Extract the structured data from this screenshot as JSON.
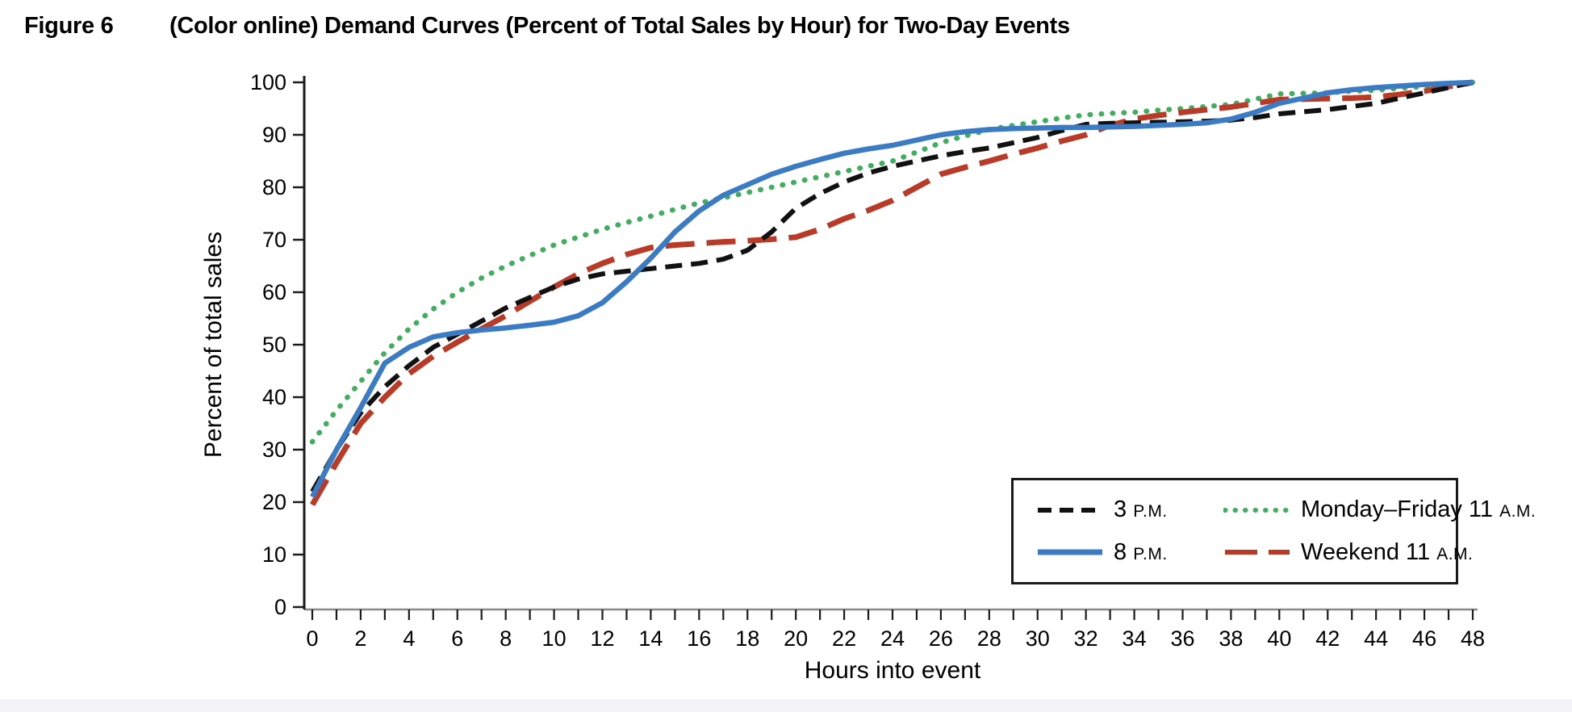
{
  "figure": {
    "label": "Figure 6",
    "title": "(Color online) Demand Curves (Percent of Total Sales by Hour) for Two-Day Events"
  },
  "chart_data": {
    "type": "line",
    "title": "Demand Curves (Percent of Total Sales by Hour) for Two-Day Events",
    "xlabel": "Hours into event",
    "ylabel": "Percent of total sales",
    "xlim": [
      0,
      48
    ],
    "ylim": [
      0,
      100
    ],
    "x_tick_step_label": 2,
    "x_tick_step_minor": 1,
    "y_tick_step": 10,
    "grid": false,
    "legend_position": "lower right",
    "x": [
      0,
      1,
      2,
      3,
      4,
      5,
      6,
      7,
      8,
      9,
      10,
      11,
      12,
      13,
      14,
      15,
      16,
      17,
      18,
      19,
      20,
      21,
      22,
      23,
      24,
      25,
      26,
      27,
      28,
      29,
      30,
      31,
      32,
      33,
      34,
      35,
      36,
      37,
      38,
      39,
      40,
      41,
      42,
      43,
      44,
      45,
      46,
      47,
      48
    ],
    "series": [
      {
        "name": "Monday–Friday 11 A.M.",
        "legend_main": "Monday–Friday 11",
        "legend_suffix": "A.M.",
        "color": "#41ad5e",
        "style": "dotted",
        "width": 6.5,
        "values": [
          31.5,
          37.5,
          43,
          48.5,
          53,
          56.8,
          60,
          62.7,
          65,
          67,
          69,
          70.5,
          72,
          73.3,
          74.5,
          75.8,
          77,
          78,
          79,
          80,
          81,
          82,
          83,
          84,
          85,
          86.7,
          88.5,
          89.8,
          91,
          91.8,
          92.5,
          93.2,
          93.8,
          94.1,
          94.3,
          94.7,
          95,
          95.4,
          95.8,
          96.8,
          97.8,
          97.9,
          98,
          98.3,
          98.5,
          98.9,
          99.2,
          99.6,
          100
        ]
      },
      {
        "name": "Weekend 11 A.M.",
        "legend_main": "Weekend 11",
        "legend_suffix": "A.M.",
        "color": "#b93a27",
        "style": "longdash",
        "width": 7,
        "values": [
          19.5,
          27.5,
          35,
          40,
          44.5,
          47.8,
          50.5,
          53,
          55.5,
          58.3,
          61,
          63.5,
          65.5,
          67.2,
          68.5,
          69,
          69.3,
          69.6,
          69.8,
          70.1,
          70.5,
          72,
          74,
          75.6,
          77.5,
          80,
          82.5,
          83.8,
          85,
          86.3,
          87.5,
          88.8,
          90,
          91.8,
          93,
          93.7,
          94.3,
          94.8,
          95.3,
          96,
          96.7,
          96.8,
          96.9,
          97,
          97.2,
          97.7,
          98.3,
          99.2,
          100
        ]
      },
      {
        "name": "3 P.M.",
        "legend_main": "3",
        "legend_suffix": "P.M.",
        "color": "#111111",
        "style": "dashed",
        "width": 6,
        "values": [
          22,
          30,
          37,
          42,
          46,
          49.5,
          52,
          54.5,
          57,
          59,
          61,
          62.5,
          63.5,
          64,
          64.5,
          65,
          65.5,
          66.3,
          68,
          71.5,
          76,
          78.8,
          81,
          82.7,
          84,
          85,
          86,
          86.8,
          87.5,
          88.5,
          89.5,
          90.8,
          92,
          92.2,
          92.3,
          92.4,
          92.5,
          92.6,
          92.8,
          93.3,
          94,
          94.4,
          94.8,
          95.4,
          96,
          97,
          98,
          99,
          100
        ]
      },
      {
        "name": "8 P.M.",
        "legend_main": "8",
        "legend_suffix": "P.M.",
        "color": "#3b7bc4",
        "style": "solid",
        "width": 6.5,
        "values": [
          21,
          30,
          38,
          46.5,
          49.5,
          51.5,
          52.3,
          52.8,
          53.2,
          53.7,
          54.3,
          55.5,
          58,
          62,
          66.5,
          71.5,
          75.5,
          78.5,
          80.5,
          82.5,
          84,
          85.3,
          86.5,
          87.3,
          88,
          89,
          90,
          90.6,
          91,
          91.2,
          91.3,
          91.4,
          91.4,
          91.5,
          91.6,
          91.8,
          92,
          92.3,
          93,
          94.3,
          96,
          97,
          98,
          98.6,
          99,
          99.3,
          99.6,
          99.8,
          100
        ]
      }
    ],
    "legend_order": [
      2,
      0,
      3,
      1
    ]
  }
}
